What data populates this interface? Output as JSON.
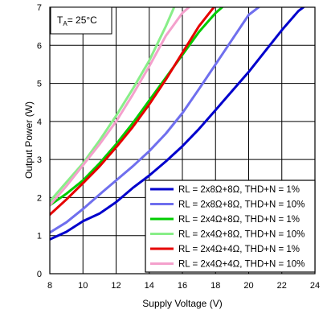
{
  "chart_data": {
    "type": "line",
    "title": "",
    "annotation": {
      "main": "T",
      "sub": "A",
      "rest": "= 25°C"
    },
    "xlabel": "Supply Voltage (V)",
    "ylabel": "Output Power (W)",
    "xlim": [
      8,
      24
    ],
    "ylim": [
      0,
      7
    ],
    "xticks": [
      8,
      10,
      12,
      14,
      16,
      18,
      20,
      22,
      24
    ],
    "yticks": [
      0,
      1,
      2,
      3,
      4,
      5,
      6,
      7
    ],
    "grid": true,
    "legend_position": "bottom-right",
    "series": [
      {
        "name": "RL = 2x8Ω+8Ω, THD+N = 1%",
        "color": "#0000cc",
        "x": [
          8,
          9,
          10,
          11,
          12,
          13,
          14,
          15,
          16,
          17,
          18,
          19,
          20,
          21,
          22,
          23,
          23.3
        ],
        "y": [
          0.9,
          1.1,
          1.38,
          1.58,
          1.88,
          2.25,
          2.58,
          2.95,
          3.35,
          3.8,
          4.3,
          4.8,
          5.3,
          5.85,
          6.4,
          6.9,
          7.0
        ]
      },
      {
        "name": "RL = 2x8Ω+8Ω, THD+N = 10%",
        "color": "#6f6fee",
        "x": [
          8,
          9,
          10,
          11,
          12,
          13,
          14,
          15,
          16,
          17,
          18,
          19,
          20,
          20.6
        ],
        "y": [
          1.08,
          1.35,
          1.7,
          2.08,
          2.45,
          2.82,
          3.22,
          3.68,
          4.22,
          4.85,
          5.5,
          6.15,
          6.8,
          7.0
        ]
      },
      {
        "name": "RL = 2x4Ω+8Ω, THD+N = 1%",
        "color": "#00cc00",
        "x": [
          8,
          9,
          10,
          11,
          12,
          13,
          14,
          15,
          16,
          17,
          18,
          18.4
        ],
        "y": [
          1.8,
          2.1,
          2.45,
          2.9,
          3.4,
          3.95,
          4.55,
          5.15,
          5.75,
          6.35,
          6.85,
          7.0
        ]
      },
      {
        "name": "RL = 2x4Ω+8Ω, THD+N = 10%",
        "color": "#88ee88",
        "x": [
          8,
          9,
          10,
          11,
          12,
          13,
          14,
          15,
          15.5
        ],
        "y": [
          1.9,
          2.4,
          2.9,
          3.5,
          4.15,
          4.85,
          5.6,
          6.5,
          7.0
        ]
      },
      {
        "name": "RL = 2x4Ω+4Ω, THD+N = 1%",
        "color": "#e60000",
        "x": [
          8,
          9,
          10,
          11,
          12,
          13,
          14,
          15,
          16,
          17,
          17.9
        ],
        "y": [
          1.55,
          1.95,
          2.38,
          2.82,
          3.32,
          3.85,
          4.45,
          5.1,
          5.8,
          6.5,
          7.0
        ]
      },
      {
        "name": "RL = 2x4Ω+4Ω, THD+N = 10%",
        "color": "#f4a0cc",
        "x": [
          8,
          9,
          10,
          11,
          12,
          13,
          14,
          15,
          16,
          16.4
        ],
        "y": [
          1.8,
          2.3,
          2.85,
          3.4,
          4.0,
          4.7,
          5.45,
          6.25,
          6.85,
          7.0
        ]
      }
    ]
  }
}
